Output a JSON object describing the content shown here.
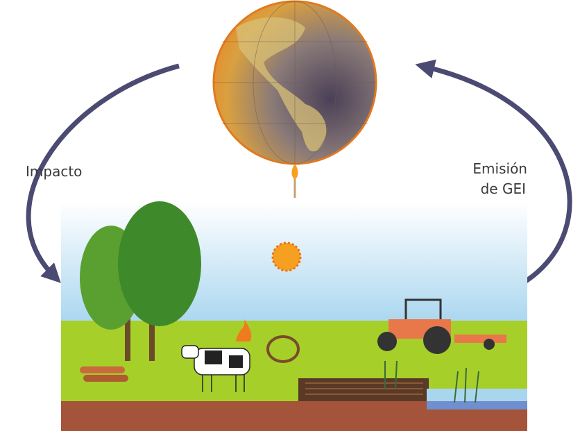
{
  "labels": {
    "impact": "Impacto",
    "emission": [
      "Emisión",
      "de GEI"
    ]
  }
}
